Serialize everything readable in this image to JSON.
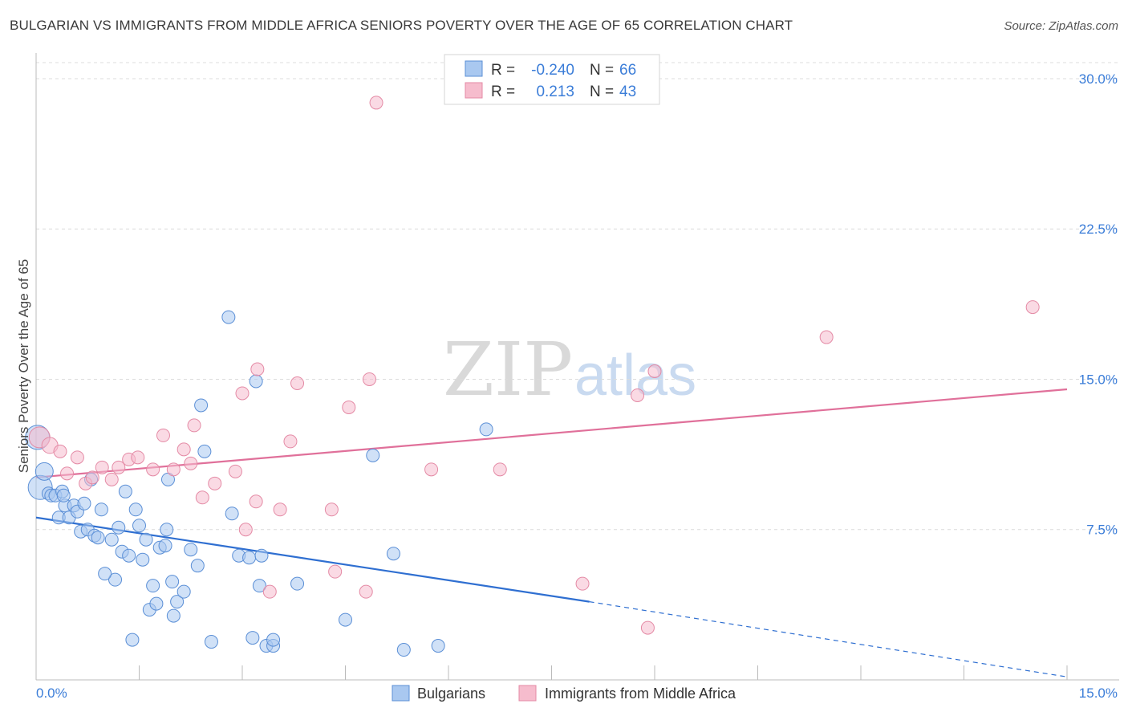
{
  "title": "BULGARIAN VS IMMIGRANTS FROM MIDDLE AFRICA SENIORS POVERTY OVER THE AGE OF 65 CORRELATION CHART",
  "source": "Source: ZipAtlas.com",
  "watermark": {
    "zip": "ZIP",
    "atlas": "atlas"
  },
  "colors": {
    "blue_fill": "#a9c8f0",
    "blue_stroke": "#5b8fd6",
    "blue_line": "#2f6fd1",
    "pink_fill": "#f6bccd",
    "pink_stroke": "#e48aa5",
    "pink_line": "#e0709a",
    "tick_text": "#3b7dd8",
    "grid": "#dcdcdc"
  },
  "legend": {
    "rows": [
      {
        "r_label": "R =",
        "r_value": "-0.240",
        "n_label": "N =",
        "n_value": "66"
      },
      {
        "r_label": "R =",
        "r_value": "0.213",
        "n_label": "N =",
        "n_value": "43"
      }
    ]
  },
  "bottom_legend": {
    "series1": "Bulgarians",
    "series2": "Immigrants from Middle Africa"
  },
  "chart_data": {
    "type": "scatter",
    "title": "BULGARIAN VS IMMIGRANTS FROM MIDDLE AFRICA SENIORS POVERTY OVER THE AGE OF 65 CORRELATION CHART",
    "xlabel": "",
    "ylabel": "Seniors Poverty Over the Age of 65",
    "xlim": [
      0,
      15
    ],
    "ylim": [
      0,
      30.8
    ],
    "x_tick_labels": [
      "0.0%",
      "15.0%"
    ],
    "y_tick_labels": [
      "7.5%",
      "15.0%",
      "22.5%",
      "30.0%"
    ],
    "y_ticks": [
      7.5,
      15.0,
      22.5,
      30.0
    ],
    "grid": true,
    "series": [
      {
        "name": "Bulgarians",
        "color": "#a9c8f0",
        "r": -0.24,
        "n": 66,
        "trend": {
          "x0": 0,
          "y0": 8.1,
          "x1": 8.05,
          "y1": 3.9,
          "dashed_to_x": 15,
          "dashed_to_y": 0.15
        },
        "points": [
          [
            0.02,
            12.1
          ],
          [
            0.06,
            9.6
          ],
          [
            0.12,
            10.4
          ],
          [
            0.18,
            9.3
          ],
          [
            0.22,
            9.2
          ],
          [
            0.28,
            9.2
          ],
          [
            0.33,
            8.1
          ],
          [
            0.38,
            9.4
          ],
          [
            0.42,
            8.7
          ],
          [
            0.48,
            8.1
          ],
          [
            0.55,
            8.7
          ],
          [
            0.6,
            8.4
          ],
          [
            0.65,
            7.4
          ],
          [
            0.7,
            8.8
          ],
          [
            0.75,
            7.5
          ],
          [
            0.8,
            10.0
          ],
          [
            0.85,
            7.2
          ],
          [
            0.9,
            7.1
          ],
          [
            0.95,
            8.5
          ],
          [
            1.1,
            7.0
          ],
          [
            1.15,
            5.0
          ],
          [
            1.2,
            7.6
          ],
          [
            1.25,
            6.4
          ],
          [
            1.3,
            9.4
          ],
          [
            1.35,
            6.2
          ],
          [
            1.4,
            2.0
          ],
          [
            1.45,
            8.5
          ],
          [
            1.5,
            7.7
          ],
          [
            1.55,
            6.0
          ],
          [
            1.6,
            7.0
          ],
          [
            1.65,
            3.5
          ],
          [
            1.7,
            4.7
          ],
          [
            1.75,
            3.8
          ],
          [
            1.8,
            6.6
          ],
          [
            1.88,
            6.7
          ],
          [
            1.9,
            7.5
          ],
          [
            1.92,
            10.0
          ],
          [
            1.98,
            4.9
          ],
          [
            2.0,
            3.2
          ],
          [
            2.05,
            3.9
          ],
          [
            2.15,
            4.4
          ],
          [
            2.25,
            6.5
          ],
          [
            2.35,
            5.7
          ],
          [
            2.4,
            13.7
          ],
          [
            2.45,
            11.4
          ],
          [
            2.55,
            1.9
          ],
          [
            2.8,
            18.1
          ],
          [
            2.85,
            8.3
          ],
          [
            2.95,
            6.2
          ],
          [
            3.1,
            6.1
          ],
          [
            3.15,
            2.1
          ],
          [
            3.2,
            14.9
          ],
          [
            3.25,
            4.7
          ],
          [
            3.28,
            6.2
          ],
          [
            3.35,
            1.7
          ],
          [
            3.45,
            1.7
          ],
          [
            3.45,
            2.0
          ],
          [
            3.8,
            4.8
          ],
          [
            4.5,
            3.0
          ],
          [
            4.9,
            11.2
          ],
          [
            5.2,
            6.3
          ],
          [
            5.35,
            1.5
          ],
          [
            5.85,
            1.7
          ],
          [
            6.55,
            12.5
          ],
          [
            1.0,
            5.3
          ],
          [
            0.4,
            9.2
          ]
        ]
      },
      {
        "name": "Immigrants from Middle Africa",
        "color": "#f6bccd",
        "r": 0.213,
        "n": 43,
        "trend": {
          "x0": 0,
          "y0": 10.1,
          "x1": 15,
          "y1": 14.5
        },
        "points": [
          [
            0.05,
            12.1
          ],
          [
            0.2,
            11.7
          ],
          [
            0.35,
            11.4
          ],
          [
            0.45,
            10.3
          ],
          [
            0.6,
            11.1
          ],
          [
            0.72,
            9.8
          ],
          [
            0.82,
            10.1
          ],
          [
            0.96,
            10.6
          ],
          [
            1.1,
            10.0
          ],
          [
            1.2,
            10.6
          ],
          [
            1.35,
            11.0
          ],
          [
            1.48,
            11.1
          ],
          [
            1.7,
            10.5
          ],
          [
            1.85,
            12.2
          ],
          [
            2.0,
            10.5
          ],
          [
            2.15,
            11.5
          ],
          [
            2.25,
            10.8
          ],
          [
            2.3,
            12.7
          ],
          [
            2.42,
            9.1
          ],
          [
            2.6,
            9.8
          ],
          [
            2.9,
            10.4
          ],
          [
            3.05,
            7.5
          ],
          [
            3.2,
            8.9
          ],
          [
            3.22,
            15.5
          ],
          [
            3.4,
            4.4
          ],
          [
            3.55,
            8.5
          ],
          [
            3.7,
            11.9
          ],
          [
            3.8,
            14.8
          ],
          [
            4.3,
            8.5
          ],
          [
            4.35,
            5.4
          ],
          [
            4.55,
            13.6
          ],
          [
            4.8,
            4.4
          ],
          [
            4.85,
            15.0
          ],
          [
            4.95,
            28.8
          ],
          [
            5.75,
            10.5
          ],
          [
            6.75,
            10.5
          ],
          [
            7.95,
            4.8
          ],
          [
            8.75,
            14.2
          ],
          [
            8.9,
            2.6
          ],
          [
            9.0,
            15.4
          ],
          [
            11.5,
            17.1
          ],
          [
            14.5,
            18.6
          ],
          [
            3.0,
            14.3
          ]
        ]
      }
    ]
  }
}
